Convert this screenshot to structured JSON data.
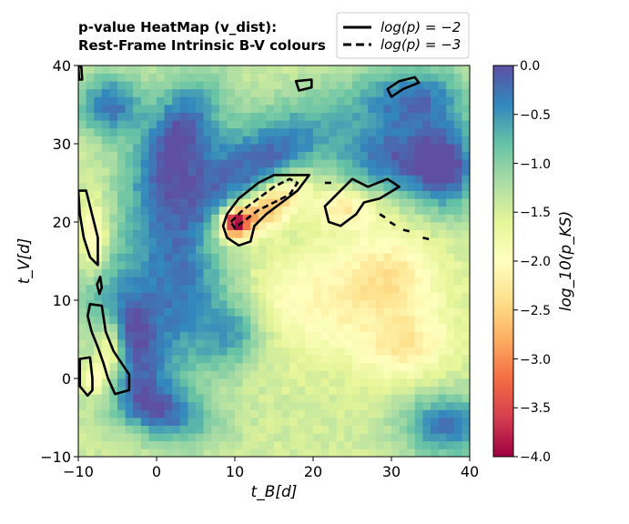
{
  "chart_data": {
    "type": "heatmap",
    "title_line1": "p-value HeatMap (v_dist):",
    "title_line2": "Rest-Frame Intrinsic B-V colours",
    "xlabel": "t_B[d]",
    "ylabel": "t_V[d]",
    "colorbar_label": "log_10(p_KS)",
    "xlim": [
      -10,
      40
    ],
    "ylim": [
      -10,
      40
    ],
    "x_ticks": [
      "−10",
      "0",
      "10",
      "20",
      "30",
      "40"
    ],
    "y_ticks": [
      "−10",
      "0",
      "10",
      "20",
      "30",
      "40"
    ],
    "color_range": [
      -4.0,
      0.0
    ],
    "colorbar_ticks": [
      "0.0",
      "−0.5",
      "−1.0",
      "−1.5",
      "−2.0",
      "−2.5",
      "−3.0",
      "−3.5",
      "−4.0"
    ],
    "colormap": "Spectral",
    "grid": false,
    "legend_position": "top-right",
    "legend": [
      {
        "label": "log(p) = −2",
        "style": "solid"
      },
      {
        "label": "log(p) = −3",
        "style": "dashed"
      }
    ],
    "features": [
      {
        "x": 2,
        "y": 30,
        "value": -0.45,
        "sx": 3.2,
        "sy": 6.5,
        "rot": -25
      },
      {
        "x": -6,
        "y": 35,
        "value": -0.3,
        "sx": 3.0,
        "sy": 3.0,
        "rot": 0
      },
      {
        "x": 14,
        "y": 28,
        "value": -0.2,
        "sx": 8.0,
        "sy": 4.0,
        "rot": 30
      },
      {
        "x": 3,
        "y": 13,
        "value": -0.25,
        "sx": 5.0,
        "sy": 9.0,
        "rot": 0
      },
      {
        "x": -4,
        "y": 6,
        "value": -0.3,
        "sx": 3.0,
        "sy": 6.0,
        "rot": 20
      },
      {
        "x": 30,
        "y": 28,
        "value": -0.3,
        "sx": 4.5,
        "sy": 3.5,
        "rot": 0
      },
      {
        "x": 37,
        "y": 27,
        "value": -0.1,
        "sx": 3.0,
        "sy": 4.0,
        "rot": 0
      },
      {
        "x": 33,
        "y": 36,
        "value": -0.35,
        "sx": 5.0,
        "sy": 3.0,
        "rot": 0
      },
      {
        "x": 37,
        "y": -6,
        "value": -0.3,
        "sx": 4.0,
        "sy": 3.0,
        "rot": 0
      },
      {
        "x": 0,
        "y": -4,
        "value": -0.4,
        "sx": 5.0,
        "sy": 2.5,
        "rot": -20
      },
      {
        "x": 10,
        "y": 6,
        "value": -0.7,
        "sx": 3.0,
        "sy": 3.0,
        "rot": 0
      },
      {
        "x": 4,
        "y": 33,
        "value": -1.1,
        "sx": 2.5,
        "sy": 4.0,
        "rot": -20
      },
      {
        "x": 22,
        "y": 10,
        "value": -2.1,
        "sx": 9.0,
        "sy": 5.0,
        "rot": 0
      },
      {
        "x": 32,
        "y": 4,
        "value": -2.1,
        "sx": 4.0,
        "sy": 3.0,
        "rot": 0
      },
      {
        "x": 30,
        "y": 14,
        "value": -2.0,
        "sx": 4.0,
        "sy": 4.0,
        "rot": 0
      },
      {
        "x": 14,
        "y": 22,
        "value": -3.2,
        "sx": 4.5,
        "sy": 1.8,
        "rot": 35
      },
      {
        "x": 10,
        "y": 20,
        "value": -3.8,
        "sx": 1.2,
        "sy": 1.2,
        "rot": 0
      },
      {
        "x": 24,
        "y": 22,
        "value": -2.3,
        "sx": 3.0,
        "sy": 1.8,
        "rot": 0
      },
      {
        "x": -8,
        "y": 18,
        "value": -2.4,
        "sx": 1.2,
        "sy": 3.0,
        "rot": 0
      },
      {
        "x": -6,
        "y": 4,
        "value": -2.6,
        "sx": 1.3,
        "sy": 3.5,
        "rot": 0
      },
      {
        "x": -8,
        "y": 0,
        "value": -2.3,
        "sx": 1.0,
        "sy": 1.5,
        "rot": 0
      }
    ],
    "contours": [
      {
        "style": "solid",
        "points": [
          [
            -10,
            24
          ],
          [
            -9,
            24
          ],
          [
            -8.5,
            22
          ],
          [
            -8,
            20
          ],
          [
            -7.5,
            18
          ],
          [
            -7.5,
            14.5
          ],
          [
            -8.5,
            15.5
          ],
          [
            -9.3,
            18
          ],
          [
            -9.8,
            21
          ]
        ]
      },
      {
        "style": "solid",
        "points": [
          [
            -8.5,
            9.5
          ],
          [
            -7,
            9.3
          ],
          [
            -6.5,
            6
          ],
          [
            -5.5,
            3.5
          ],
          [
            -4.5,
            2
          ],
          [
            -3.5,
            0.5
          ],
          [
            -3.5,
            -1.5
          ],
          [
            -5.3,
            -2
          ],
          [
            -6.2,
            0
          ],
          [
            -6.8,
            2
          ],
          [
            -7.5,
            4
          ],
          [
            -8.3,
            6
          ],
          [
            -8.8,
            8
          ]
        ]
      },
      {
        "style": "solid",
        "points": [
          [
            -9.8,
            2.5
          ],
          [
            -8.5,
            2.7
          ],
          [
            -8.2,
            0
          ],
          [
            -8.2,
            -1.5
          ],
          [
            -8.8,
            -2.2
          ],
          [
            -9.8,
            -1
          ]
        ]
      },
      {
        "style": "solid",
        "points": [
          [
            -7.2,
            13
          ],
          [
            -7,
            11.6
          ],
          [
            -7.3,
            10.8
          ],
          [
            -7.6,
            12
          ]
        ]
      },
      {
        "style": "solid",
        "points": [
          [
            -10,
            40
          ],
          [
            -9.6,
            39.8
          ],
          [
            -9.5,
            38.2
          ],
          [
            -9.9,
            38.2
          ]
        ]
      },
      {
        "style": "solid",
        "points": [
          [
            9,
            21
          ],
          [
            10.5,
            23
          ],
          [
            13,
            25
          ],
          [
            15,
            26
          ],
          [
            17,
            26
          ],
          [
            19.5,
            26
          ],
          [
            18,
            24
          ],
          [
            16,
            22.5
          ],
          [
            14,
            21
          ],
          [
            12.5,
            19.5
          ],
          [
            12,
            17.5
          ],
          [
            10.5,
            17
          ],
          [
            9,
            18
          ],
          [
            8.5,
            19.5
          ]
        ]
      },
      {
        "style": "dashed",
        "points": [
          [
            9.5,
            20
          ],
          [
            11,
            21.5
          ],
          [
            13,
            23
          ],
          [
            15,
            24.5
          ],
          [
            17,
            25.5
          ],
          [
            18,
            25
          ],
          [
            17,
            23.5
          ],
          [
            15,
            22.5
          ],
          [
            13,
            21.5
          ],
          [
            11,
            20
          ],
          [
            10,
            19.2
          ]
        ]
      },
      {
        "style": "solid",
        "points": [
          [
            21.5,
            22
          ],
          [
            23.5,
            24
          ],
          [
            25,
            25.5
          ],
          [
            27,
            24.5
          ],
          [
            29.5,
            25.5
          ],
          [
            31,
            24.5
          ],
          [
            28.5,
            23
          ],
          [
            26.5,
            22.5
          ],
          [
            25.5,
            21
          ],
          [
            23.5,
            19.5
          ],
          [
            22,
            20
          ]
        ]
      },
      {
        "style": "solid",
        "points": [
          [
            17.8,
            38
          ],
          [
            19.8,
            38.2
          ],
          [
            19.8,
            37.2
          ],
          [
            18.2,
            36.8
          ]
        ]
      },
      {
        "style": "solid",
        "points": [
          [
            29.5,
            37
          ],
          [
            31,
            38
          ],
          [
            33,
            38.5
          ],
          [
            33.5,
            37.8
          ],
          [
            31.5,
            37
          ],
          [
            30,
            36
          ]
        ]
      },
      {
        "style": "dashed",
        "points": [
          [
            21.5,
            25
          ],
          [
            22.3,
            25
          ]
        ]
      },
      {
        "style": "dashed",
        "points": [
          [
            28.5,
            21
          ],
          [
            29.3,
            20.5
          ]
        ]
      },
      {
        "style": "dashed",
        "points": [
          [
            29.8,
            20
          ],
          [
            30.6,
            19.5
          ]
        ]
      },
      {
        "style": "dashed",
        "points": [
          [
            31.5,
            19
          ],
          [
            32.3,
            18.8
          ]
        ]
      },
      {
        "style": "dashed",
        "points": [
          [
            34,
            18
          ],
          [
            34.8,
            17.8
          ]
        ]
      }
    ]
  }
}
